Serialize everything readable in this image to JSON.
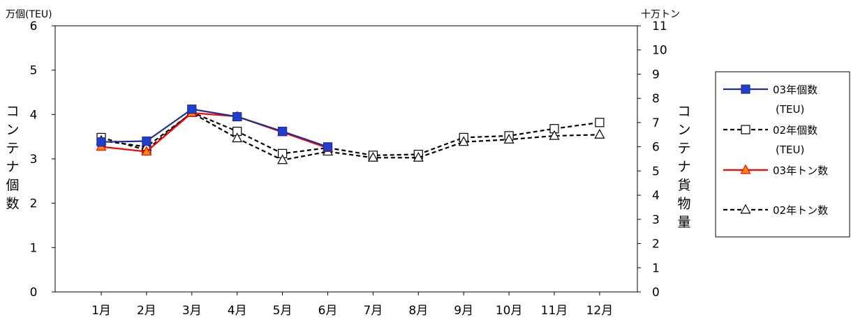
{
  "chart_data": {
    "type": "line",
    "left_axis_unit": "万個(TEU)",
    "right_axis_unit": "十万トン",
    "left_axis_title": "コンテナ個数",
    "right_axis_title": "コンテナ貨物量",
    "categories": [
      "1月",
      "2月",
      "3月",
      "4月",
      "5月",
      "6月",
      "7月",
      "8月",
      "9月",
      "10月",
      "11月",
      "12月"
    ],
    "y_left": {
      "min": 0,
      "max": 6,
      "ticks": [
        "0",
        "1",
        "2",
        "3",
        "4",
        "5",
        "6"
      ]
    },
    "y_right": {
      "min": 0,
      "max": 11,
      "ticks": [
        "0",
        "1",
        "2",
        "3",
        "4",
        "5",
        "6",
        "7",
        "8",
        "9",
        "10",
        "11"
      ]
    },
    "grid": false,
    "legend_position": "right",
    "series": [
      {
        "name": "03年個数",
        "name_sub": "(TEU)",
        "axis": "left",
        "color": "#1f2f8f",
        "marker_fill": "#1f3fd0",
        "marker": "square-filled",
        "dash": "solid",
        "values": [
          3.38,
          3.4,
          4.12,
          3.95,
          3.62,
          3.27,
          null,
          null,
          null,
          null,
          null,
          null
        ]
      },
      {
        "name": "02年個数",
        "name_sub": "(TEU)",
        "axis": "left",
        "color": "#000000",
        "marker_fill": "#ffffff",
        "marker": "square-open",
        "dash": "dashed",
        "values": [
          3.48,
          3.2,
          4.05,
          3.62,
          3.12,
          3.25,
          3.08,
          3.1,
          3.48,
          3.52,
          3.68,
          3.82
        ]
      },
      {
        "name": "03年トン数",
        "name_sub": "",
        "axis": "right",
        "color": "#ff0000",
        "marker_fill": "#ff8800",
        "marker": "triangle-filled",
        "dash": "solid",
        "values": [
          6.0,
          5.8,
          7.4,
          7.25,
          6.6,
          5.95,
          null,
          null,
          null,
          null,
          null,
          null
        ]
      },
      {
        "name": "02年トン数",
        "name_sub": "",
        "axis": "right",
        "color": "#000000",
        "marker_fill": "#ffffff",
        "marker": "triangle-open",
        "dash": "dashed",
        "values": [
          6.25,
          6.0,
          7.4,
          6.35,
          5.45,
          5.8,
          5.55,
          5.55,
          6.2,
          6.3,
          6.45,
          6.5
        ]
      }
    ]
  }
}
